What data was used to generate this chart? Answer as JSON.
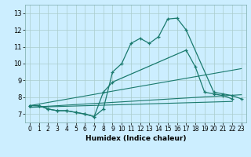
{
  "xlabel": "Humidex (Indice chaleur)",
  "bg_color": "#cceeff",
  "grid_color": "#aacccc",
  "line_color": "#1a7a6e",
  "xlim": [
    -0.5,
    23.5
  ],
  "ylim": [
    6.5,
    13.5
  ],
  "xticks": [
    0,
    1,
    2,
    3,
    4,
    5,
    6,
    7,
    8,
    9,
    10,
    11,
    12,
    13,
    14,
    15,
    16,
    17,
    18,
    19,
    20,
    21,
    22,
    23
  ],
  "yticks": [
    7,
    8,
    9,
    10,
    11,
    12,
    13
  ],
  "curve1_x": [
    0,
    1,
    2,
    3,
    4,
    5,
    6,
    7,
    8,
    9,
    10,
    11,
    12,
    13,
    14,
    15,
    16,
    17,
    20,
    21,
    22,
    23
  ],
  "curve1_y": [
    7.5,
    7.5,
    7.3,
    7.2,
    7.2,
    7.1,
    7.0,
    6.85,
    7.3,
    9.5,
    10.0,
    11.2,
    11.5,
    11.2,
    11.6,
    12.65,
    12.7,
    12.0,
    8.3,
    8.2,
    8.1,
    7.9
  ],
  "curve2_x": [
    0,
    1,
    2,
    3,
    4,
    5,
    6,
    7,
    8,
    9,
    17,
    18,
    19,
    20,
    21,
    22
  ],
  "curve2_y": [
    7.5,
    7.5,
    7.3,
    7.2,
    7.2,
    7.1,
    7.0,
    6.85,
    8.3,
    8.9,
    10.8,
    9.8,
    8.3,
    8.2,
    8.1,
    7.9
  ],
  "line1_x": [
    0,
    23
  ],
  "line1_y": [
    7.5,
    9.7
  ],
  "line2_x": [
    0,
    23
  ],
  "line2_y": [
    7.4,
    8.15
  ],
  "line3_x": [
    0,
    22
  ],
  "line3_y": [
    7.4,
    7.75
  ]
}
